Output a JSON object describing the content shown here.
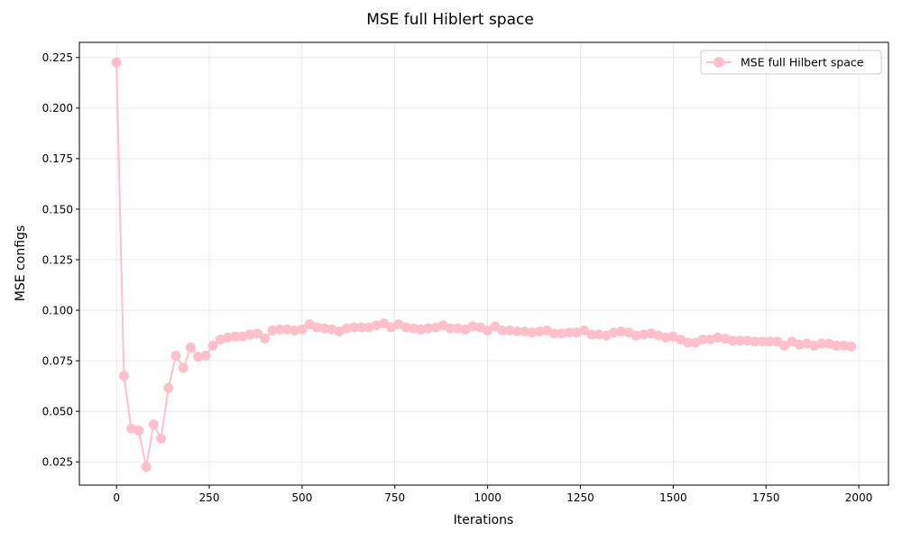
{
  "chart_data": {
    "type": "line",
    "title": "MSE full Hiblert space",
    "xlabel": "Iterations",
    "ylabel": "MSE configs",
    "xlim": [
      -100,
      2080
    ],
    "ylim": [
      0.0135,
      0.2325
    ],
    "xticks": [
      0,
      250,
      500,
      750,
      1000,
      1250,
      1500,
      1750,
      2000
    ],
    "xtick_labels": [
      "0",
      "250",
      "500",
      "750",
      "1000",
      "1250",
      "1500",
      "1750",
      "2000"
    ],
    "yticks": [
      0.025,
      0.05,
      0.075,
      0.1,
      0.125,
      0.15,
      0.175,
      0.2,
      0.225
    ],
    "ytick_labels": [
      "0.025",
      "0.050",
      "0.075",
      "0.100",
      "0.125",
      "0.150",
      "0.175",
      "0.200",
      "0.225"
    ],
    "grid": true,
    "legend_position": "top-right",
    "series": [
      {
        "name": "MSE full Hilbert space",
        "color": "#ffc0cb",
        "marker": "circle",
        "x": [
          0,
          20,
          40,
          60,
          80,
          100,
          120,
          140,
          160,
          180,
          200,
          220,
          240,
          260,
          280,
          300,
          320,
          340,
          360,
          380,
          400,
          420,
          440,
          460,
          480,
          500,
          520,
          540,
          560,
          580,
          600,
          620,
          640,
          660,
          680,
          700,
          720,
          740,
          760,
          780,
          800,
          820,
          840,
          860,
          880,
          900,
          920,
          940,
          960,
          980,
          1000,
          1020,
          1040,
          1060,
          1080,
          1100,
          1120,
          1140,
          1160,
          1180,
          1200,
          1220,
          1240,
          1260,
          1280,
          1300,
          1320,
          1340,
          1360,
          1380,
          1400,
          1420,
          1440,
          1460,
          1480,
          1500,
          1520,
          1540,
          1560,
          1580,
          1600,
          1620,
          1640,
          1660,
          1680,
          1700,
          1720,
          1740,
          1760,
          1780,
          1800,
          1820,
          1840,
          1860,
          1880,
          1900,
          1920,
          1940,
          1960,
          1980
        ],
        "y": [
          0.2225,
          0.0675,
          0.0415,
          0.0405,
          0.0225,
          0.0435,
          0.0365,
          0.0615,
          0.0775,
          0.0715,
          0.0815,
          0.077,
          0.0775,
          0.0825,
          0.0855,
          0.0865,
          0.087,
          0.087,
          0.088,
          0.0885,
          0.086,
          0.09,
          0.0905,
          0.0905,
          0.09,
          0.0905,
          0.093,
          0.0915,
          0.091,
          0.0905,
          0.0895,
          0.091,
          0.0915,
          0.0915,
          0.0915,
          0.0925,
          0.0935,
          0.0915,
          0.093,
          0.0915,
          0.091,
          0.0905,
          0.091,
          0.0915,
          0.0925,
          0.091,
          0.091,
          0.0905,
          0.092,
          0.0915,
          0.09,
          0.092,
          0.09,
          0.09,
          0.0895,
          0.0895,
          0.089,
          0.0895,
          0.09,
          0.0885,
          0.0885,
          0.089,
          0.089,
          0.09,
          0.088,
          0.088,
          0.0875,
          0.089,
          0.0895,
          0.089,
          0.0875,
          0.088,
          0.0885,
          0.0875,
          0.0865,
          0.087,
          0.0855,
          0.084,
          0.084,
          0.0855,
          0.0855,
          0.0865,
          0.086,
          0.085,
          0.085,
          0.085,
          0.0845,
          0.0845,
          0.0845,
          0.0845,
          0.0825,
          0.0845,
          0.083,
          0.0835,
          0.0825,
          0.0835,
          0.0835,
          0.0825,
          0.0825,
          0.082
        ]
      }
    ]
  }
}
